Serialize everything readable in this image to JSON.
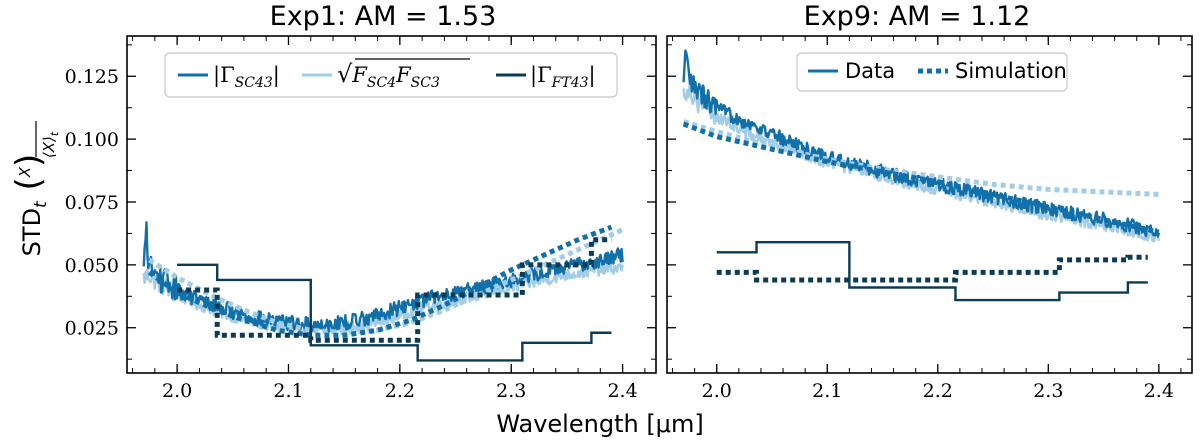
{
  "figure": {
    "ylabel_main": "STD",
    "ylabel_sub": "t",
    "ylabel_frac_num": "X",
    "ylabel_frac_den": "⟨X⟩",
    "ylabel_frac_den_sub": "t",
    "xlabel": "Wavelength [μm]"
  },
  "colors": {
    "data_dark": "#1170aa",
    "sim_light": "#a3cce9",
    "ft_navy": "#0b3b55",
    "sim_dotted": "#1170aa"
  },
  "chart_data": [
    {
      "type": "line",
      "title": "Exp1:  AM = 1.53",
      "xlim": [
        1.955,
        2.43
      ],
      "ylim": [
        0.007,
        0.141
      ],
      "xticks": [
        2.0,
        2.1,
        2.2,
        2.3,
        2.4
      ],
      "xtick_labels": [
        "2.0",
        "2.1",
        "2.2",
        "2.3",
        "2.4"
      ],
      "yticks": [
        0.025,
        0.05,
        0.075,
        0.1,
        0.125
      ],
      "ytick_labels": [
        "0.025",
        "0.050",
        "0.075",
        "0.100",
        "0.125"
      ],
      "legend": {
        "placement": "top",
        "entries": [
          {
            "key": "sc43",
            "parts": [
              "|Γ",
              "SC43",
              "|"
            ]
          },
          {
            "key": "sqrt",
            "parts": [
              "√",
              "F",
              "SC4",
              "F",
              "SC3"
            ]
          },
          {
            "key": "ft43",
            "parts": [
              "|Γ",
              "FT43",
              "|"
            ]
          }
        ]
      },
      "series": [
        {
          "key": "sc43",
          "style": "noisy",
          "color": "data_dark",
          "x": [
            1.97,
            1.972,
            1.975,
            1.98,
            2.0,
            2.02,
            2.04,
            2.06,
            2.08,
            2.1,
            2.12,
            2.15,
            2.18,
            2.2,
            2.22,
            2.25,
            2.28,
            2.3,
            2.32,
            2.35,
            2.38,
            2.4
          ],
          "y": [
            0.047,
            0.064,
            0.05,
            0.046,
            0.04,
            0.036,
            0.033,
            0.03,
            0.028,
            0.027,
            0.026,
            0.027,
            0.03,
            0.033,
            0.036,
            0.039,
            0.042,
            0.044,
            0.046,
            0.049,
            0.052,
            0.054
          ],
          "noise": 0.003
        },
        {
          "key": "sqrt",
          "style": "noisy",
          "color": "sim_light",
          "x": [
            1.97,
            1.975,
            1.98,
            2.0,
            2.02,
            2.04,
            2.06,
            2.08,
            2.1,
            2.12,
            2.15,
            2.18,
            2.2,
            2.22,
            2.25,
            2.28,
            2.3,
            2.32,
            2.35,
            2.38,
            2.4
          ],
          "y": [
            0.045,
            0.046,
            0.044,
            0.038,
            0.034,
            0.031,
            0.028,
            0.026,
            0.025,
            0.024,
            0.025,
            0.027,
            0.03,
            0.033,
            0.036,
            0.039,
            0.041,
            0.043,
            0.046,
            0.048,
            0.049
          ],
          "noise": 0.0022
        },
        {
          "key": "sc43_sim",
          "style": "dotted",
          "color": "sim_dotted",
          "x": [
            1.975,
            2.0,
            2.03,
            2.06,
            2.09,
            2.12,
            2.15,
            2.18,
            2.21,
            2.24,
            2.27,
            2.3,
            2.33,
            2.36,
            2.39
          ],
          "y": [
            0.047,
            0.039,
            0.033,
            0.028,
            0.024,
            0.022,
            0.022,
            0.024,
            0.028,
            0.034,
            0.041,
            0.048,
            0.054,
            0.06,
            0.065
          ]
        },
        {
          "key": "sqrt_sim",
          "style": "dotted",
          "color": "sim_light",
          "x": [
            1.975,
            2.0,
            2.03,
            2.06,
            2.09,
            2.12,
            2.15,
            2.18,
            2.21,
            2.24,
            2.27,
            2.3,
            2.33,
            2.36,
            2.39,
            2.4
          ],
          "y": [
            0.052,
            0.045,
            0.038,
            0.032,
            0.027,
            0.024,
            0.023,
            0.024,
            0.027,
            0.032,
            0.038,
            0.044,
            0.05,
            0.056,
            0.062,
            0.064
          ]
        },
        {
          "key": "ft43",
          "style": "step",
          "color": "ft_navy",
          "edges": [
            2.0,
            2.036,
            2.12,
            2.216,
            2.31,
            2.372,
            2.39
          ],
          "values": [
            0.05,
            0.044,
            0.018,
            0.012,
            0.019,
            0.023
          ]
        },
        {
          "key": "ft43_sim",
          "style": "step-dotted",
          "color": "ft_navy",
          "edges": [
            2.0,
            2.036,
            2.12,
            2.216,
            2.31,
            2.372,
            2.39
          ],
          "values": [
            0.04,
            0.022,
            0.02,
            0.038,
            0.05,
            0.06
          ]
        }
      ]
    },
    {
      "type": "line",
      "title": "Exp9:  AM = 1.12",
      "xlim": [
        1.955,
        2.43
      ],
      "ylim": [
        0.007,
        0.141
      ],
      "xticks": [
        2.0,
        2.1,
        2.2,
        2.3,
        2.4
      ],
      "xtick_labels": [
        "2.0",
        "2.1",
        "2.2",
        "2.3",
        "2.4"
      ],
      "yticks": [
        0.025,
        0.05,
        0.075,
        0.1,
        0.125
      ],
      "ytick_labels": [],
      "legend": {
        "placement": "top",
        "entries": [
          {
            "key": "data",
            "parts": [
              "Data"
            ]
          },
          {
            "key": "simulation",
            "parts": [
              "Simulation"
            ]
          }
        ]
      },
      "series": [
        {
          "key": "sc43",
          "style": "noisy",
          "color": "data_dark",
          "x": [
            1.97,
            1.972,
            1.975,
            1.98,
            2.0,
            2.03,
            2.06,
            2.1,
            2.15,
            2.2,
            2.25,
            2.3,
            2.35,
            2.4
          ],
          "y": [
            0.12,
            0.134,
            0.124,
            0.12,
            0.112,
            0.106,
            0.1,
            0.093,
            0.087,
            0.082,
            0.077,
            0.072,
            0.068,
            0.063
          ],
          "noise": 0.0028
        },
        {
          "key": "sqrt",
          "style": "noisy",
          "color": "sim_light",
          "x": [
            1.97,
            1.975,
            1.98,
            2.0,
            2.03,
            2.06,
            2.1,
            2.15,
            2.2,
            2.25,
            2.3,
            2.35,
            2.4
          ],
          "y": [
            0.118,
            0.121,
            0.116,
            0.109,
            0.102,
            0.097,
            0.091,
            0.085,
            0.08,
            0.075,
            0.07,
            0.066,
            0.061
          ],
          "noise": 0.0024
        },
        {
          "key": "sc43_sim",
          "style": "dotted",
          "color": "sim_dotted",
          "x": [
            1.97,
            2.0,
            2.05,
            2.1,
            2.15,
            2.2,
            2.25,
            2.3,
            2.35,
            2.4
          ],
          "y": [
            0.106,
            0.101,
            0.096,
            0.091,
            0.087,
            0.083,
            0.078,
            0.073,
            0.068,
            0.063
          ]
        },
        {
          "key": "sqrt_sim",
          "style": "dotted",
          "color": "sim_light",
          "x": [
            1.97,
            2.0,
            2.05,
            2.1,
            2.15,
            2.2,
            2.25,
            2.3,
            2.35,
            2.4
          ],
          "y": [
            0.107,
            0.103,
            0.097,
            0.092,
            0.088,
            0.085,
            0.082,
            0.08,
            0.079,
            0.078
          ]
        },
        {
          "key": "ft43",
          "style": "step",
          "color": "ft_navy",
          "edges": [
            2.0,
            2.036,
            2.12,
            2.216,
            2.31,
            2.372,
            2.39
          ],
          "values": [
            0.055,
            0.059,
            0.041,
            0.036,
            0.039,
            0.043
          ]
        },
        {
          "key": "ft43_sim",
          "style": "step-dotted",
          "color": "ft_navy",
          "edges": [
            2.0,
            2.036,
            2.12,
            2.216,
            2.31,
            2.372,
            2.39
          ],
          "values": [
            0.047,
            0.044,
            0.044,
            0.047,
            0.052,
            0.053
          ]
        }
      ]
    }
  ]
}
